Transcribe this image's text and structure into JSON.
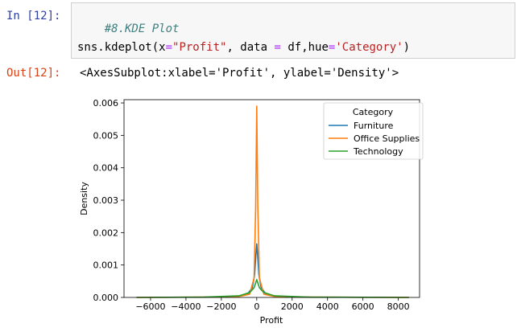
{
  "input_prompt": "In [12]:",
  "output_prompt": "Out[12]:",
  "code": {
    "comment": "#8.KDE Plot",
    "line2_parts": [
      "sns.kdeplot(x",
      "=",
      "\"Profit\"",
      ", data ",
      "=",
      " df,hue",
      "=",
      "'Category'",
      ")"
    ]
  },
  "output_repr": "<AxesSubplot:xlabel='Profit', ylabel='Density'>",
  "chart_data": {
    "type": "line",
    "xlabel": "Profit",
    "ylabel": "Density",
    "xlim": [
      -7500,
      9200
    ],
    "ylim": [
      0,
      0.0061
    ],
    "x_ticks": [
      -6000,
      -4000,
      -2000,
      0,
      2000,
      4000,
      6000,
      8000
    ],
    "x_tick_labels": [
      "−6000",
      "−4000",
      "−2000",
      "0",
      "2000",
      "4000",
      "6000",
      "8000"
    ],
    "y_ticks": [
      0.0,
      0.001,
      0.002,
      0.003,
      0.004,
      0.005,
      0.006
    ],
    "y_tick_labels": [
      "0.000",
      "0.001",
      "0.002",
      "0.003",
      "0.004",
      "0.005",
      "0.006"
    ],
    "legend": {
      "title": "Category",
      "placement": "top-right"
    },
    "grid": false,
    "series": [
      {
        "name": "Furniture",
        "color": "#1f77b4",
        "x": [
          -1800,
          -1000,
          -500,
          -250,
          -120,
          -50,
          0,
          50,
          120,
          250,
          500,
          1000,
          1800
        ],
        "y": [
          1e-05,
          3e-05,
          0.00012,
          0.0003,
          0.0007,
          0.0013,
          0.00165,
          0.0013,
          0.0007,
          0.0003,
          0.00012,
          3e-05,
          1e-05
        ]
      },
      {
        "name": "Office Supplies",
        "color": "#ff7f0e",
        "x": [
          -6800,
          -3000,
          -1000,
          -400,
          -150,
          -60,
          0,
          60,
          150,
          400,
          1000,
          3000,
          8600
        ],
        "y": [
          0.0,
          1e-05,
          3e-05,
          0.0001,
          0.0006,
          0.0028,
          0.0059,
          0.0028,
          0.0006,
          0.0001,
          3e-05,
          1e-05,
          0.0
        ]
      },
      {
        "name": "Technology",
        "color": "#2ca02c",
        "x": [
          -6800,
          -3000,
          -1000,
          -400,
          -150,
          0,
          150,
          400,
          1000,
          3000,
          8600
        ],
        "y": [
          0.0,
          1e-05,
          5e-05,
          0.00015,
          0.0003,
          0.00055,
          0.0003,
          0.00015,
          5e-05,
          1e-05,
          0.0
        ]
      }
    ]
  }
}
